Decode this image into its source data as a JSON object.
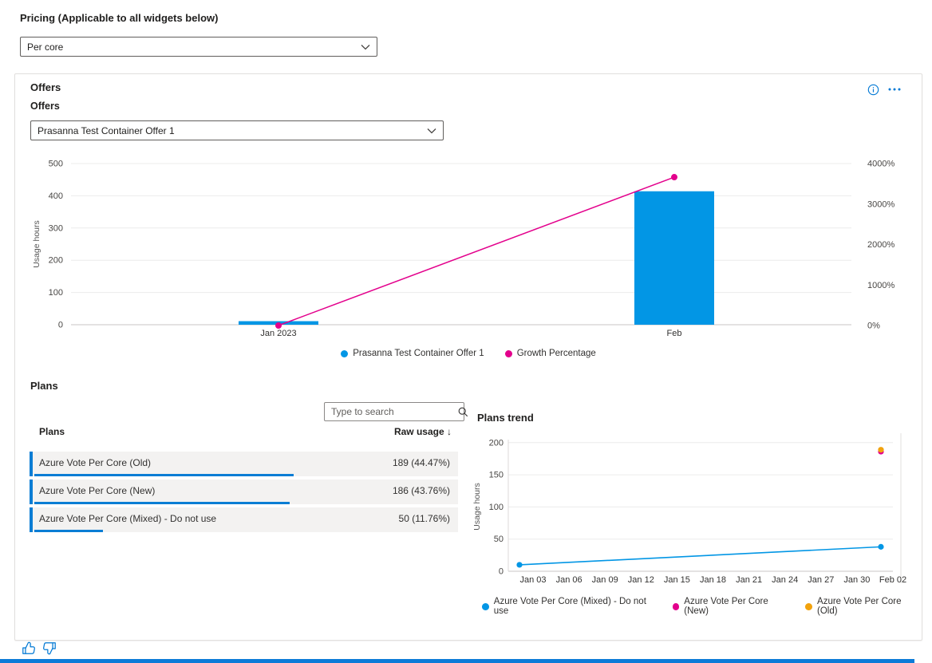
{
  "pricing": {
    "label": "Pricing (Applicable to all widgets below)",
    "selected": "Per core"
  },
  "offers_card": {
    "title": "Offers",
    "offers_label": "Offers",
    "offers_selected": "Prasanna Test Container Offer 1",
    "info_icon": "info-circle",
    "more_icon": "ellipsis"
  },
  "chart_data": [
    {
      "id": "offer_usage_growth",
      "type": "bar",
      "title": "",
      "ylabel": "Usage hours",
      "categories": [
        "Jan 2023",
        "Feb"
      ],
      "left_axis": {
        "ticks": [
          0,
          100,
          200,
          300,
          400,
          500
        ],
        "lim": [
          0,
          500
        ]
      },
      "right_axis": {
        "ticks": [
          "0%",
          "1000%",
          "2000%",
          "3000%",
          "4000%"
        ],
        "lim": [
          0,
          4000
        ]
      },
      "grid": true,
      "legend_position": "bottom-center",
      "series": [
        {
          "name": "Prasanna Test Container Offer 1",
          "type": "bar",
          "axis": "left",
          "color": "#0296e5",
          "values": [
            11,
            414
          ]
        },
        {
          "name": "Growth Percentage",
          "type": "line",
          "axis": "right",
          "color": "#e3008c",
          "values": [
            0,
            3664
          ]
        }
      ]
    },
    {
      "id": "plans_trend",
      "type": "line",
      "title": "Plans trend",
      "ylabel": "Usage hours",
      "y_ticks": [
        0,
        50,
        100,
        150,
        200
      ],
      "ylim": [
        0,
        200
      ],
      "x_ticks": [
        "Jan 03",
        "Jan 06",
        "Jan 09",
        "Jan 12",
        "Jan 15",
        "Jan 18",
        "Jan 21",
        "Jan 24",
        "Jan 27",
        "Jan 30",
        "Feb 02"
      ],
      "grid": true,
      "legend_position": "bottom-left",
      "series": [
        {
          "name": "Azure Vote Per Core (Mixed) - Do not use",
          "color": "#0296e5",
          "points": [
            {
              "x": "Jan 01",
              "y": 10
            },
            {
              "x": "Feb 01",
              "y": 38
            }
          ]
        },
        {
          "name": "Azure Vote Per Core (New)",
          "color": "#e3008c",
          "points": [
            {
              "x": "Feb 01",
              "y": 186
            }
          ]
        },
        {
          "name": "Azure Vote Per Core (Old)",
          "color": "#f2a20d",
          "points": [
            {
              "x": "Feb 01",
              "y": 189
            }
          ]
        }
      ]
    }
  ],
  "plans": {
    "title": "Plans",
    "search_placeholder": "Type to search",
    "col_plans": "Plans",
    "col_raw_usage": "Raw usage",
    "sort_arrow": "↓",
    "rows": [
      {
        "name": "Azure Vote Per Core (Old)",
        "value": 189,
        "display": "189 (44.47%)"
      },
      {
        "name": "Azure Vote Per Core (New)",
        "value": 186,
        "display": "186 (43.76%)"
      },
      {
        "name": "Azure Vote Per Core (Mixed) - Do not use",
        "value": 50,
        "display": "50 (11.76%)"
      }
    ]
  },
  "feedback": {
    "like_icon": "thumb-up",
    "dislike_icon": "thumb-down"
  },
  "colors": {
    "accent": "#0078d4",
    "chart_blue": "#0296e5",
    "magenta": "#e3008c",
    "orange": "#f2a20d",
    "table_bar_blue": "#0b7dd4",
    "row_bg": "#f3f2f1",
    "scrollbar_blue": "#0c7bd8"
  }
}
